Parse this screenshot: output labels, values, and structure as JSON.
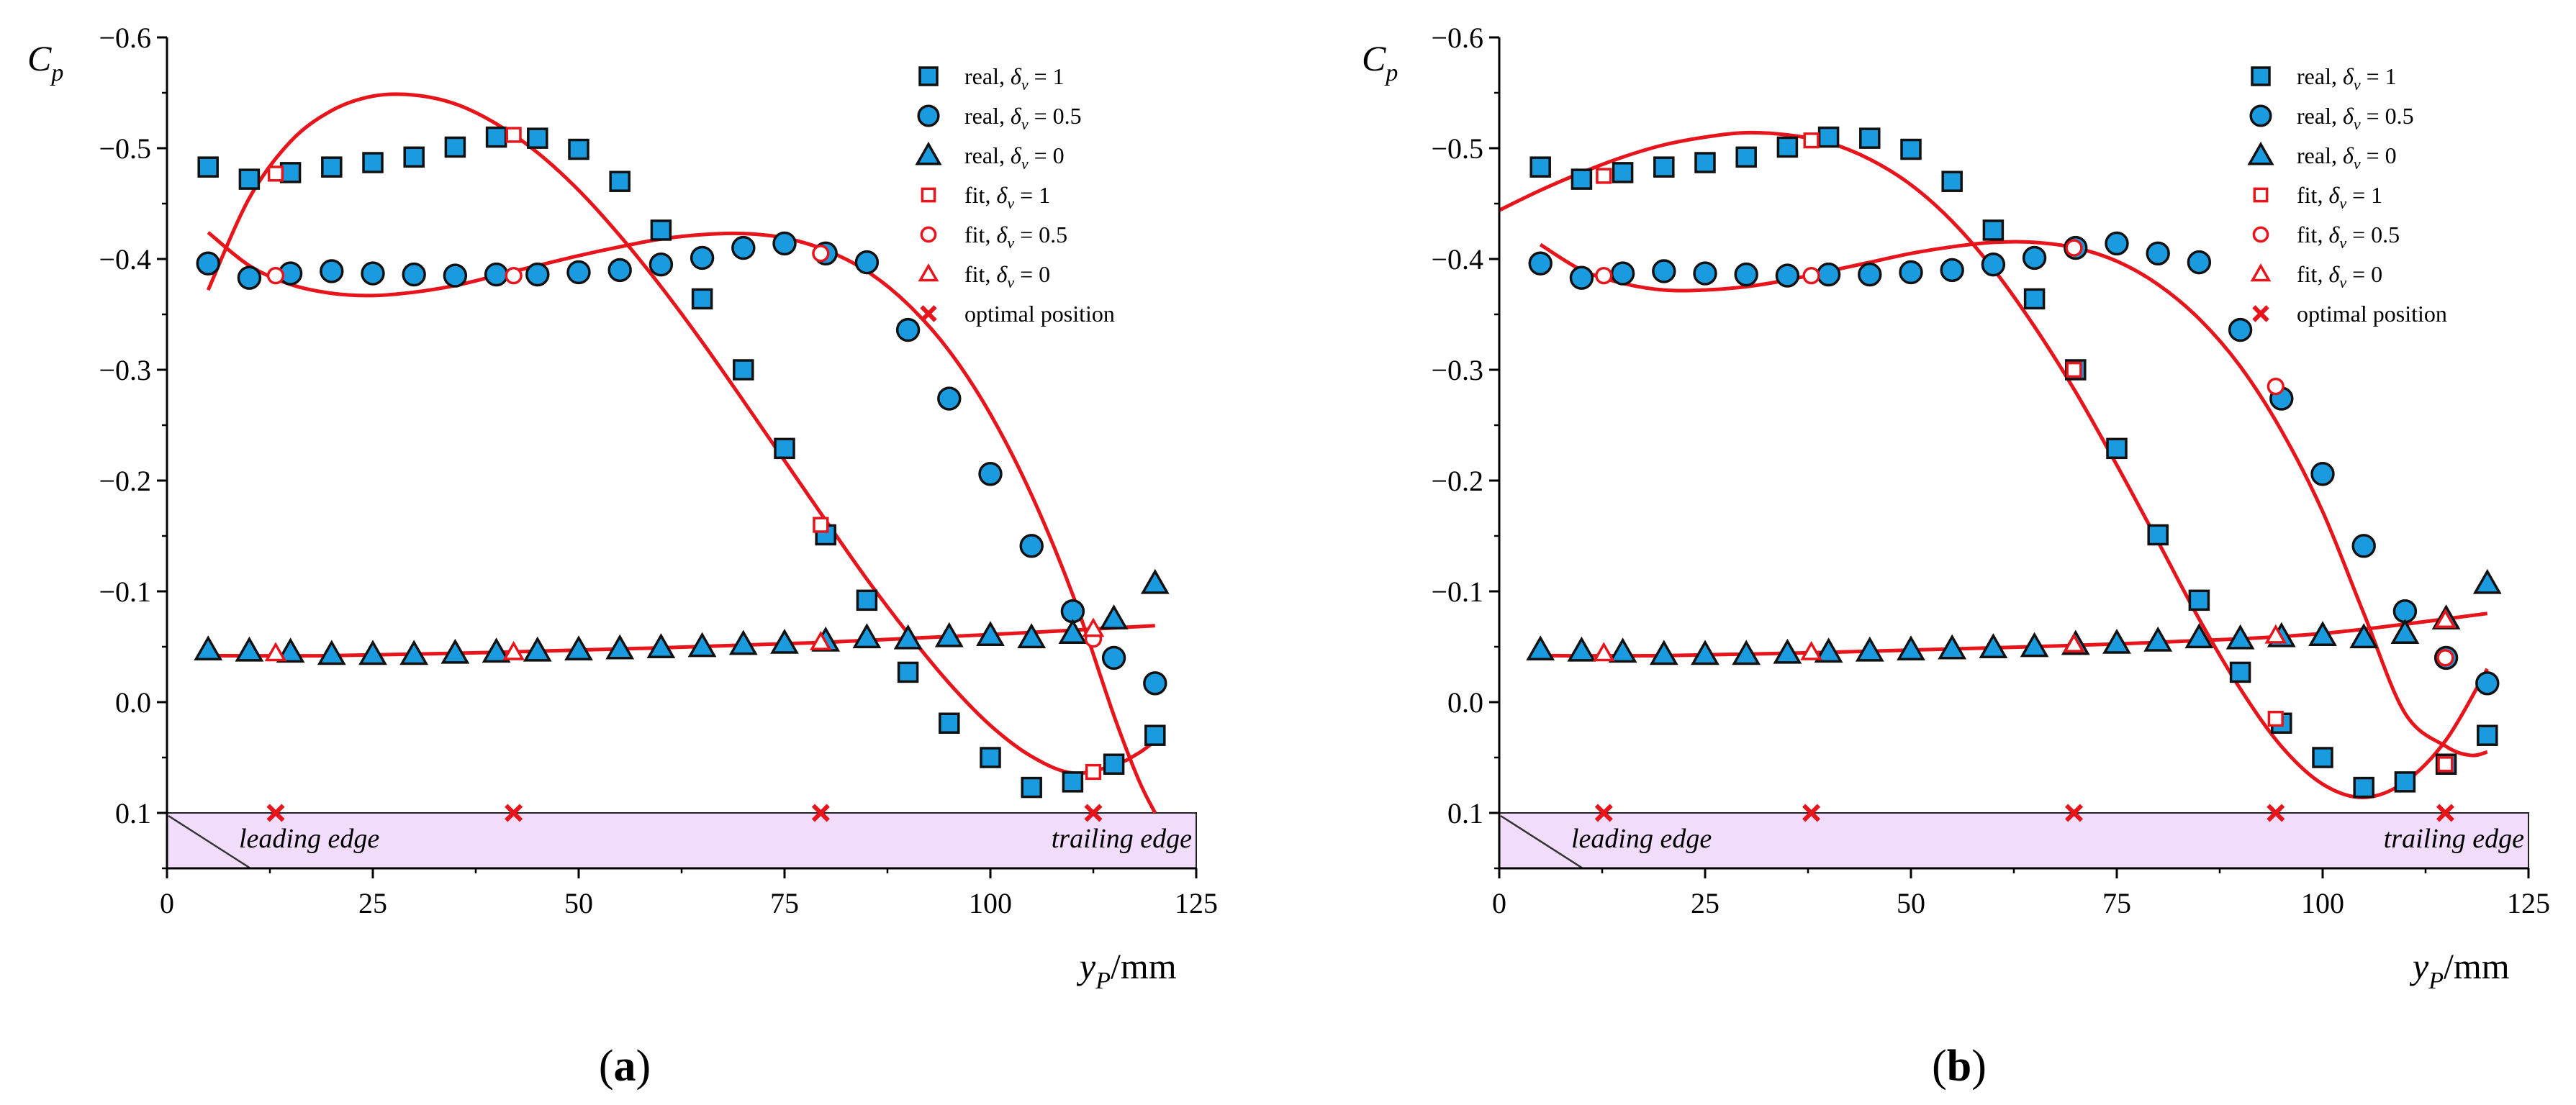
{
  "chart_data": [
    {
      "id": "a",
      "type": "scatter",
      "panel_label_open": "(",
      "panel_label_letter": "a",
      "panel_label_close": ")",
      "xlabel_main": "y",
      "xlabel_sub": "P",
      "xlabel_unit": "/mm",
      "ylabel_main": "C",
      "ylabel_sub": "p",
      "xlim": [
        0,
        125
      ],
      "ylim": [
        0.15,
        -0.6
      ],
      "xticks": [
        0,
        25,
        50,
        75,
        100,
        125
      ],
      "xtick_labels": [
        "0",
        "25",
        "50",
        "75",
        "100",
        "125"
      ],
      "yticks": [
        -0.6,
        -0.5,
        -0.4,
        -0.3,
        -0.2,
        -0.1,
        0.0,
        0.1
      ],
      "ytick_labels": [
        "−0.6",
        "−0.5",
        "−0.4",
        "−0.3",
        "−0.2",
        "−0.1",
        "0.0",
        "0.1"
      ],
      "airfoil": {
        "y_from": 0.1,
        "x_from": 0,
        "x_to": 125,
        "leading_label": "leading edge",
        "trailing_label": "trailing edge"
      },
      "legend": [
        {
          "marker": "square-filled",
          "prefix": "real, ",
          "sym": "δ",
          "sub": "v",
          "suffix": " = 1"
        },
        {
          "marker": "circle-filled",
          "prefix": "real, ",
          "sym": "δ",
          "sub": "v",
          "suffix": " = 0.5"
        },
        {
          "marker": "triangle-filled",
          "prefix": "real, ",
          "sym": "δ",
          "sub": "v",
          "suffix": " = 0"
        },
        {
          "marker": "square-open",
          "prefix": "fit, ",
          "sym": "δ",
          "sub": "v",
          "suffix": " = 1"
        },
        {
          "marker": "circle-open",
          "prefix": "fit, ",
          "sym": "δ",
          "sub": "v",
          "suffix": " = 0.5"
        },
        {
          "marker": "triangle-open",
          "prefix": "fit, ",
          "sym": "δ",
          "sub": "v",
          "suffix": " = 0"
        },
        {
          "marker": "cross",
          "prefix": "optimal position",
          "sym": "",
          "sub": "",
          "suffix": ""
        }
      ],
      "series": [
        {
          "name": "real, δv = 1",
          "marker": "square",
          "x": [
            5,
            10,
            15,
            20,
            25,
            30,
            35,
            40,
            45,
            50,
            55,
            60,
            65,
            70,
            75,
            80,
            85,
            90,
            95,
            100,
            105,
            110,
            115,
            120
          ],
          "y": [
            -0.483,
            -0.472,
            -0.478,
            -0.483,
            -0.487,
            -0.492,
            -0.501,
            -0.51,
            -0.509,
            -0.499,
            -0.47,
            -0.426,
            -0.364,
            -0.3,
            -0.229,
            -0.151,
            -0.092,
            -0.027,
            0.019,
            0.05,
            0.077,
            0.072,
            0.056,
            0.03
          ]
        },
        {
          "name": "real, δv = 0.5",
          "marker": "circle",
          "x": [
            5,
            10,
            15,
            20,
            25,
            30,
            35,
            40,
            45,
            50,
            55,
            60,
            65,
            70,
            75,
            80,
            85,
            90,
            95,
            100,
            105,
            110,
            115,
            120
          ],
          "y": [
            -0.396,
            -0.383,
            -0.387,
            -0.389,
            -0.387,
            -0.386,
            -0.385,
            -0.386,
            -0.386,
            -0.388,
            -0.39,
            -0.395,
            -0.401,
            -0.41,
            -0.414,
            -0.405,
            -0.397,
            -0.336,
            -0.274,
            -0.206,
            -0.141,
            -0.082,
            -0.04,
            -0.017
          ]
        },
        {
          "name": "real, δv = 0",
          "marker": "triangle",
          "x": [
            5,
            10,
            15,
            20,
            25,
            30,
            35,
            40,
            45,
            50,
            55,
            60,
            65,
            70,
            75,
            80,
            85,
            90,
            95,
            100,
            105,
            110,
            115,
            120
          ],
          "y": [
            -0.047,
            -0.046,
            -0.045,
            -0.043,
            -0.043,
            -0.043,
            -0.044,
            -0.045,
            -0.046,
            -0.047,
            -0.048,
            -0.049,
            -0.05,
            -0.052,
            -0.053,
            -0.055,
            -0.058,
            -0.057,
            -0.059,
            -0.06,
            -0.058,
            -0.062,
            -0.075,
            -0.107
          ]
        },
        {
          "name": "fit, δv = 1",
          "marker": "square-open",
          "x": [
            13.2,
            42.1,
            79.4,
            112.5
          ],
          "y": [
            -0.477,
            -0.512,
            -0.16,
            0.063
          ]
        },
        {
          "name": "fit, δv = 0.5",
          "marker": "circle-open",
          "x": [
            13.2,
            42.1,
            79.4,
            112.5
          ],
          "y": [
            -0.385,
            -0.385,
            -0.405,
            -0.057
          ]
        },
        {
          "name": "fit, δv = 0",
          "marker": "triangle-open",
          "x": [
            13.2,
            42.1,
            79.4,
            112.5
          ],
          "y": [
            -0.044,
            -0.045,
            -0.054,
            -0.066
          ]
        },
        {
          "name": "optimal position",
          "marker": "cross",
          "x": [
            13.2,
            42.1,
            79.4,
            112.5
          ],
          "y": [
            0.1,
            0.1,
            0.1,
            0.1
          ]
        }
      ],
      "fit_curves": [
        {
          "name": "fit, δv = 1",
          "x": [
            5,
            10,
            15,
            20,
            25,
            30,
            35,
            40,
            45,
            50,
            55,
            60,
            65,
            70,
            75,
            80,
            85,
            90,
            95,
            100,
            105,
            110,
            115,
            118,
            120
          ],
          "y": [
            -0.372,
            -0.455,
            -0.506,
            -0.534,
            -0.547,
            -0.548,
            -0.54,
            -0.522,
            -0.496,
            -0.462,
            -0.421,
            -0.375,
            -0.325,
            -0.272,
            -0.218,
            -0.164,
            -0.111,
            -0.062,
            -0.017,
            0.021,
            0.049,
            0.064,
            0.057,
            0.046,
            0.035
          ]
        },
        {
          "name": "fit, δv = 0.5",
          "x": [
            5,
            10,
            15,
            20,
            25,
            30,
            35,
            40,
            45,
            50,
            55,
            60,
            65,
            70,
            75,
            80,
            85,
            90,
            95,
            100,
            105,
            110,
            115,
            118,
            120
          ],
          "y": [
            -0.424,
            -0.394,
            -0.377,
            -0.369,
            -0.367,
            -0.37,
            -0.376,
            -0.385,
            -0.394,
            -0.403,
            -0.411,
            -0.418,
            -0.422,
            -0.423,
            -0.419,
            -0.408,
            -0.389,
            -0.359,
            -0.317,
            -0.26,
            -0.187,
            -0.097,
            0.012,
            0.07,
            0.1
          ]
        },
        {
          "name": "fit, δv = 0",
          "x": [
            5,
            20,
            40,
            60,
            80,
            100,
            120
          ],
          "y": [
            -0.042,
            -0.042,
            -0.045,
            -0.049,
            -0.054,
            -0.061,
            -0.069
          ]
        }
      ]
    },
    {
      "id": "b",
      "type": "scatter",
      "panel_label_open": "(",
      "panel_label_letter": "b",
      "panel_label_close": ")",
      "xlabel_main": "y",
      "xlabel_sub": "P",
      "xlabel_unit": "/mm",
      "ylabel_main": "C",
      "ylabel_sub": "p",
      "xlim": [
        0,
        125
      ],
      "ylim": [
        0.15,
        -0.6
      ],
      "xticks": [
        0,
        25,
        50,
        75,
        100,
        125
      ],
      "xtick_labels": [
        "0",
        "25",
        "50",
        "75",
        "100",
        "125"
      ],
      "yticks": [
        -0.6,
        -0.5,
        -0.4,
        -0.3,
        -0.2,
        -0.1,
        0.0,
        0.1
      ],
      "ytick_labels": [
        "−0.6",
        "−0.5",
        "−0.4",
        "−0.3",
        "−0.2",
        "−0.1",
        "0.0",
        "0.1"
      ],
      "airfoil": {
        "y_from": 0.1,
        "x_from": 0,
        "x_to": 125,
        "leading_label": "leading edge",
        "trailing_label": "trailing edge"
      },
      "legend": [
        {
          "marker": "square-filled",
          "prefix": "real, ",
          "sym": "δ",
          "sub": "v",
          "suffix": " = 1"
        },
        {
          "marker": "circle-filled",
          "prefix": "real, ",
          "sym": "δ",
          "sub": "v",
          "suffix": " = 0.5"
        },
        {
          "marker": "triangle-filled",
          "prefix": "real, ",
          "sym": "δ",
          "sub": "v",
          "suffix": " = 0"
        },
        {
          "marker": "square-open",
          "prefix": "fit, ",
          "sym": "δ",
          "sub": "v",
          "suffix": " = 1"
        },
        {
          "marker": "circle-open",
          "prefix": "fit, ",
          "sym": "δ",
          "sub": "v",
          "suffix": " = 0.5"
        },
        {
          "marker": "triangle-open",
          "prefix": "fit, ",
          "sym": "δ",
          "sub": "v",
          "suffix": " = 0"
        },
        {
          "marker": "cross",
          "prefix": "optimal position",
          "sym": "",
          "sub": "",
          "suffix": ""
        }
      ],
      "series": [
        {
          "name": "real, δv = 1",
          "marker": "square",
          "x": [
            5,
            10,
            15,
            20,
            25,
            30,
            35,
            40,
            45,
            50,
            55,
            60,
            65,
            70,
            75,
            80,
            85,
            90,
            95,
            100,
            105,
            110,
            115,
            120
          ],
          "y": [
            -0.483,
            -0.472,
            -0.478,
            -0.483,
            -0.487,
            -0.492,
            -0.501,
            -0.51,
            -0.509,
            -0.499,
            -0.47,
            -0.426,
            -0.364,
            -0.3,
            -0.229,
            -0.151,
            -0.092,
            -0.027,
            0.019,
            0.05,
            0.077,
            0.072,
            0.056,
            0.03
          ]
        },
        {
          "name": "real, δv = 0.5",
          "marker": "circle",
          "x": [
            5,
            10,
            15,
            20,
            25,
            30,
            35,
            40,
            45,
            50,
            55,
            60,
            65,
            70,
            75,
            80,
            85,
            90,
            95,
            100,
            105,
            110,
            115,
            120
          ],
          "y": [
            -0.396,
            -0.383,
            -0.387,
            -0.389,
            -0.387,
            -0.386,
            -0.385,
            -0.386,
            -0.386,
            -0.388,
            -0.39,
            -0.395,
            -0.401,
            -0.41,
            -0.414,
            -0.405,
            -0.397,
            -0.336,
            -0.274,
            -0.206,
            -0.141,
            -0.082,
            -0.04,
            -0.017
          ]
        },
        {
          "name": "real, δv = 0",
          "marker": "triangle",
          "x": [
            5,
            10,
            15,
            20,
            25,
            30,
            35,
            40,
            45,
            50,
            55,
            60,
            65,
            70,
            75,
            80,
            85,
            90,
            95,
            100,
            105,
            110,
            115,
            120
          ],
          "y": [
            -0.047,
            -0.046,
            -0.045,
            -0.043,
            -0.043,
            -0.043,
            -0.044,
            -0.045,
            -0.046,
            -0.047,
            -0.048,
            -0.049,
            -0.05,
            -0.052,
            -0.053,
            -0.055,
            -0.058,
            -0.057,
            -0.059,
            -0.06,
            -0.058,
            -0.062,
            -0.075,
            -0.107
          ]
        },
        {
          "name": "fit, δv = 1",
          "marker": "square-open",
          "x": [
            12.7,
            37.9,
            69.8,
            94.3,
            114.9
          ],
          "y": [
            -0.475,
            -0.507,
            -0.3,
            0.015,
            0.056
          ]
        },
        {
          "name": "fit, δv = 0.5",
          "marker": "circle-open",
          "x": [
            12.7,
            37.9,
            69.8,
            94.3,
            114.9
          ],
          "y": [
            -0.385,
            -0.385,
            -0.41,
            -0.285,
            -0.04
          ]
        },
        {
          "name": "fit, δv = 0",
          "marker": "triangle-open",
          "x": [
            12.7,
            37.9,
            69.8,
            94.3,
            114.9
          ],
          "y": [
            -0.044,
            -0.045,
            -0.052,
            -0.06,
            -0.074
          ]
        },
        {
          "name": "optimal position",
          "marker": "cross",
          "x": [
            12.7,
            37.9,
            69.8,
            94.3,
            114.9
          ],
          "y": [
            0.1,
            0.1,
            0.1,
            0.1,
            0.1
          ]
        }
      ],
      "fit_curves": [
        {
          "name": "fit, δv = 1",
          "x": [
            0,
            5,
            10,
            15,
            20,
            25,
            30,
            35,
            40,
            45,
            50,
            55,
            60,
            65,
            70,
            75,
            80,
            85,
            90,
            95,
            100,
            105,
            110,
            115,
            120
          ],
          "y": [
            -0.444,
            -0.462,
            -0.478,
            -0.492,
            -0.503,
            -0.51,
            -0.514,
            -0.512,
            -0.505,
            -0.49,
            -0.467,
            -0.434,
            -0.391,
            -0.339,
            -0.28,
            -0.214,
            -0.145,
            -0.075,
            -0.012,
            0.04,
            0.074,
            0.086,
            0.072,
            0.034,
            -0.03
          ]
        },
        {
          "name": "fit, δv = 0.5",
          "x": [
            5,
            10,
            15,
            20,
            25,
            30,
            35,
            40,
            45,
            50,
            55,
            60,
            65,
            70,
            75,
            80,
            85,
            90,
            95,
            100,
            105,
            110,
            115,
            118,
            120
          ],
          "y": [
            -0.413,
            -0.39,
            -0.378,
            -0.372,
            -0.372,
            -0.375,
            -0.381,
            -0.389,
            -0.397,
            -0.405,
            -0.411,
            -0.415,
            -0.415,
            -0.41,
            -0.398,
            -0.377,
            -0.346,
            -0.303,
            -0.245,
            -0.172,
            -0.08,
            0.01,
            0.04,
            0.048,
            0.045
          ]
        },
        {
          "name": "fit, δv = 0",
          "x": [
            5,
            20,
            40,
            60,
            80,
            100,
            120
          ],
          "y": [
            -0.042,
            -0.042,
            -0.045,
            -0.049,
            -0.054,
            -0.062,
            -0.08
          ]
        }
      ]
    }
  ]
}
